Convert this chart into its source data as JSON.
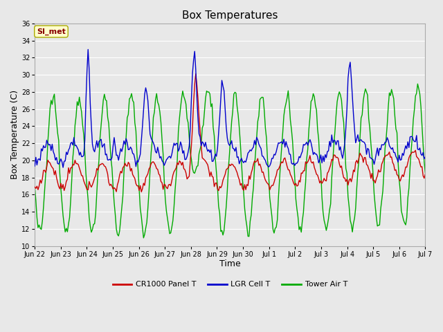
{
  "title": "Box Temperatures",
  "xlabel": "Time",
  "ylabel": "Box Temperature (C)",
  "ylim": [
    10,
    36
  ],
  "yticks": [
    10,
    12,
    14,
    16,
    18,
    20,
    22,
    24,
    26,
    28,
    30,
    32,
    34,
    36
  ],
  "plot_bg_color": "#e8e8e8",
  "grid_color": "#ffffff",
  "legend_items": [
    "CR1000 Panel T",
    "LGR Cell T",
    "Tower Air T"
  ],
  "legend_colors": [
    "#cc0000",
    "#0000cc",
    "#00aa00"
  ],
  "annotation_text": "SI_met",
  "annotation_color": "#880000",
  "annotation_bg": "#ffffcc",
  "annotation_border": "#aaaa00",
  "x_ticklabels": [
    "Jun 22",
    "Jun 23",
    "Jun 24",
    "Jun 25",
    "Jun 26",
    "Jun 27",
    "Jun 28",
    "Jun 29",
    "Jun 30",
    "Jul 1",
    "Jul 2",
    "Jul 3",
    "Jul 4",
    "Jul 5",
    "Jul 6",
    "Jul 7"
  ],
  "x_tickpos": [
    0,
    1,
    2,
    3,
    4,
    5,
    6,
    7,
    8,
    9,
    10,
    11,
    12,
    13,
    14,
    15
  ],
  "line_width": 1.0,
  "title_fontsize": 11,
  "tick_fontsize": 7,
  "label_fontsize": 9
}
